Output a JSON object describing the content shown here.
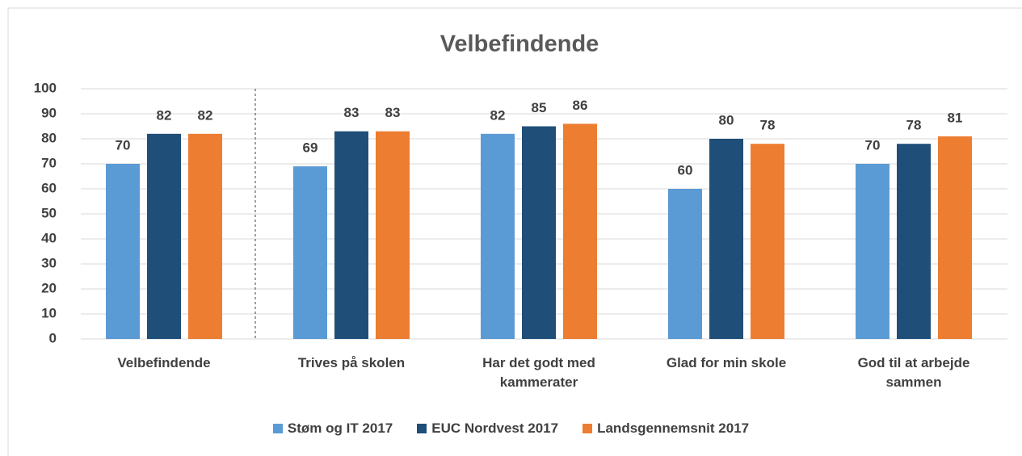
{
  "chart_data": {
    "type": "bar",
    "title": "Velbefindende",
    "categories": [
      "Velbefindende",
      "Trives på skolen",
      "Har det godt med kammerater",
      "Glad for min skole",
      "God til at arbejde sammen"
    ],
    "series": [
      {
        "name": "Støm og IT 2017",
        "color": "#5b9bd5",
        "values": [
          70,
          69,
          82,
          60,
          70
        ]
      },
      {
        "name": "EUC Nordvest 2017",
        "color": "#1f4e79",
        "values": [
          82,
          83,
          85,
          80,
          78
        ]
      },
      {
        "name": "Landsgennemsnit 2017",
        "color": "#ed7d31",
        "values": [
          82,
          83,
          86,
          78,
          81
        ]
      }
    ],
    "ylim": [
      0,
      100
    ],
    "yticks": [
      0,
      10,
      20,
      30,
      40,
      50,
      60,
      70,
      80,
      90,
      100
    ],
    "grid": true,
    "legend": "bottom"
  }
}
